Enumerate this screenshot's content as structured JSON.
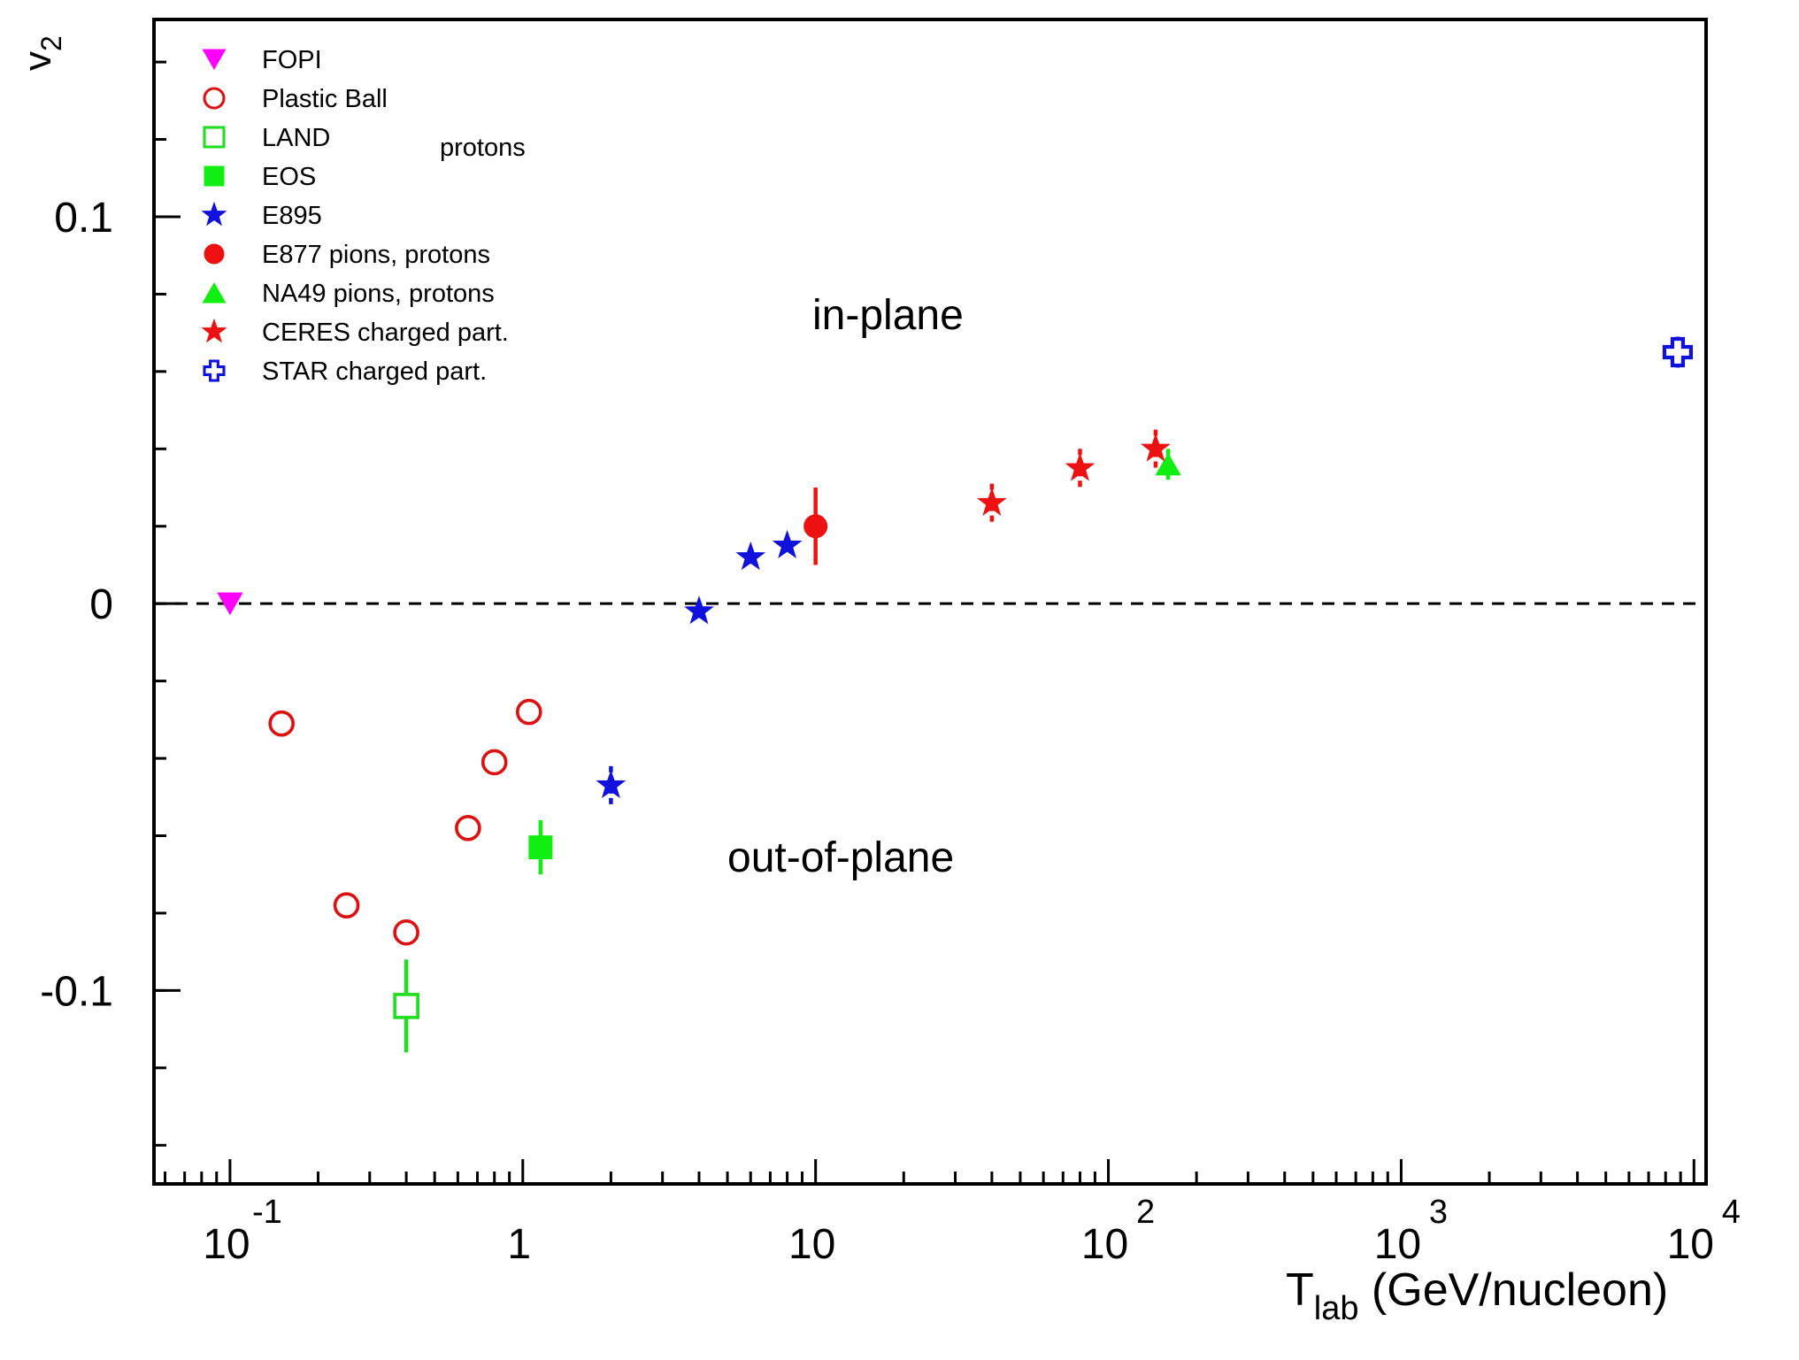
{
  "chart_data": {
    "type": "scatter",
    "title": "",
    "xlabel": {
      "main": "T",
      "sub": "lab",
      "rest": " (GeV/nucleon)"
    },
    "ylabel": {
      "main": "v",
      "sub": "2"
    },
    "x_scale": "log",
    "xlim": [
      0.055,
      11000
    ],
    "ylim": [
      -0.15,
      0.151
    ],
    "x_ticks": [
      {
        "value": 0.1,
        "base": "10",
        "exp": "-1"
      },
      {
        "value": 1,
        "base": "1",
        "exp": ""
      },
      {
        "value": 10,
        "base": "10",
        "exp": ""
      },
      {
        "value": 100,
        "base": "10",
        "exp": "2"
      },
      {
        "value": 1000,
        "base": "10",
        "exp": "3"
      },
      {
        "value": 10000,
        "base": "10",
        "exp": "4"
      }
    ],
    "y_ticks": [
      {
        "value": 0.1,
        "label": "0.1"
      },
      {
        "value": 0,
        "label": "0"
      },
      {
        "value": -0.1,
        "label": "-0.1"
      }
    ],
    "zero_line": {
      "y": 0,
      "style": "dashed"
    },
    "grid": false,
    "legend_position": "top-left",
    "legend_title": "protons",
    "annotations": [
      {
        "text": "in-plane",
        "x": 10,
        "y": 0.074
      },
      {
        "text": "out-of-plane",
        "x": 8.5,
        "y": -0.067
      }
    ],
    "series": [
      {
        "name": "FOPI",
        "marker": "triangle-down",
        "filled": true,
        "color": "#ff00ff",
        "points": [
          {
            "x": 0.1,
            "y": 0.0,
            "err": 0
          }
        ]
      },
      {
        "name": "Plastic Ball",
        "marker": "circle",
        "filled": false,
        "color": "#dd1111",
        "points": [
          {
            "x": 0.15,
            "y": -0.031,
            "err": 0
          },
          {
            "x": 0.25,
            "y": -0.078,
            "err": 0
          },
          {
            "x": 0.4,
            "y": -0.085,
            "err": 0
          },
          {
            "x": 0.65,
            "y": -0.058,
            "err": 0
          },
          {
            "x": 0.8,
            "y": -0.041,
            "err": 0
          },
          {
            "x": 1.05,
            "y": -0.028,
            "err": 0
          }
        ]
      },
      {
        "name": "LAND",
        "marker": "square",
        "filled": false,
        "color": "#22dd22",
        "points": [
          {
            "x": 0.4,
            "y": -0.104,
            "err": 0.012
          }
        ]
      },
      {
        "name": "EOS",
        "marker": "square",
        "filled": true,
        "color": "#11ee11",
        "points": [
          {
            "x": 1.15,
            "y": -0.063,
            "err": 0.007
          }
        ]
      },
      {
        "name": "E895",
        "marker": "star",
        "filled": true,
        "color": "#1111dd",
        "points": [
          {
            "x": 2.0,
            "y": -0.047,
            "err": 0.005
          },
          {
            "x": 4.0,
            "y": -0.002,
            "err": 0
          },
          {
            "x": 6.0,
            "y": 0.012,
            "err": 0
          },
          {
            "x": 8.0,
            "y": 0.015,
            "err": 0
          }
        ]
      },
      {
        "name": "E877 pions, protons",
        "marker": "circle",
        "filled": true,
        "color": "#ee1111",
        "points": [
          {
            "x": 10.0,
            "y": 0.02,
            "err": 0.01
          }
        ]
      },
      {
        "name": "NA49 pions, protons",
        "marker": "triangle-up",
        "filled": true,
        "color": "#11ee11",
        "points": [
          {
            "x": 160,
            "y": 0.036,
            "err": 0.004
          }
        ]
      },
      {
        "name": "CERES  charged part.",
        "marker": "star",
        "filled": true,
        "color": "#ee1111",
        "points": [
          {
            "x": 40,
            "y": 0.026,
            "err": 0.005
          },
          {
            "x": 80,
            "y": 0.035,
            "err": 0.005
          },
          {
            "x": 145,
            "y": 0.04,
            "err": 0.005
          }
        ]
      },
      {
        "name": "STAR  charged part.",
        "marker": "cross-open",
        "filled": false,
        "color": "#1111dd",
        "points": [
          {
            "x": 8800,
            "y": 0.065,
            "err": 0.004
          }
        ]
      }
    ]
  }
}
